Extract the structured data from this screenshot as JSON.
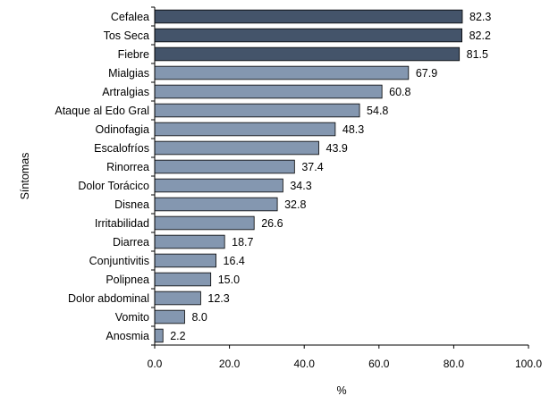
{
  "chart_data": {
    "type": "bar",
    "orientation": "horizontal",
    "title": "",
    "xlabel": "%",
    "ylabel": "Síntomas",
    "xlim": [
      0,
      100
    ],
    "xticks": [
      "0.0",
      "20.0",
      "40.0",
      "60.0",
      "80.0",
      "100.0"
    ],
    "grid": false,
    "legend": "none",
    "categories": [
      "Cefalea",
      "Tos Seca",
      "Fiebre",
      "Mialgias",
      "Artralgias",
      "Ataque al Edo Gral",
      "Odinofagia",
      "Escalofríos",
      "Rinorrea",
      "Dolor Torácico",
      "Disnea",
      "Irritabilidad",
      "Diarrea",
      "Conjuntivitis",
      "Polipnea",
      "Dolor abdominal",
      "Vomito",
      "Anosmia"
    ],
    "values": [
      82.3,
      82.2,
      81.5,
      67.9,
      60.8,
      54.8,
      48.3,
      43.9,
      37.4,
      34.3,
      32.8,
      26.6,
      18.7,
      16.4,
      15.0,
      12.3,
      8.0,
      2.2
    ],
    "value_labels": [
      "82.3",
      "82.2",
      "81.5",
      "67.9",
      "60.8",
      "54.8",
      "48.3",
      "43.9",
      "37.4",
      "34.3",
      "32.8",
      "26.6",
      "18.7",
      "16.4",
      "15.0",
      "12.3",
      "8.0",
      "2.2"
    ],
    "colors": {
      "highlight": "#44546a",
      "default": "#8497b0",
      "stroke": "#000000"
    },
    "highlight_count": 3
  }
}
